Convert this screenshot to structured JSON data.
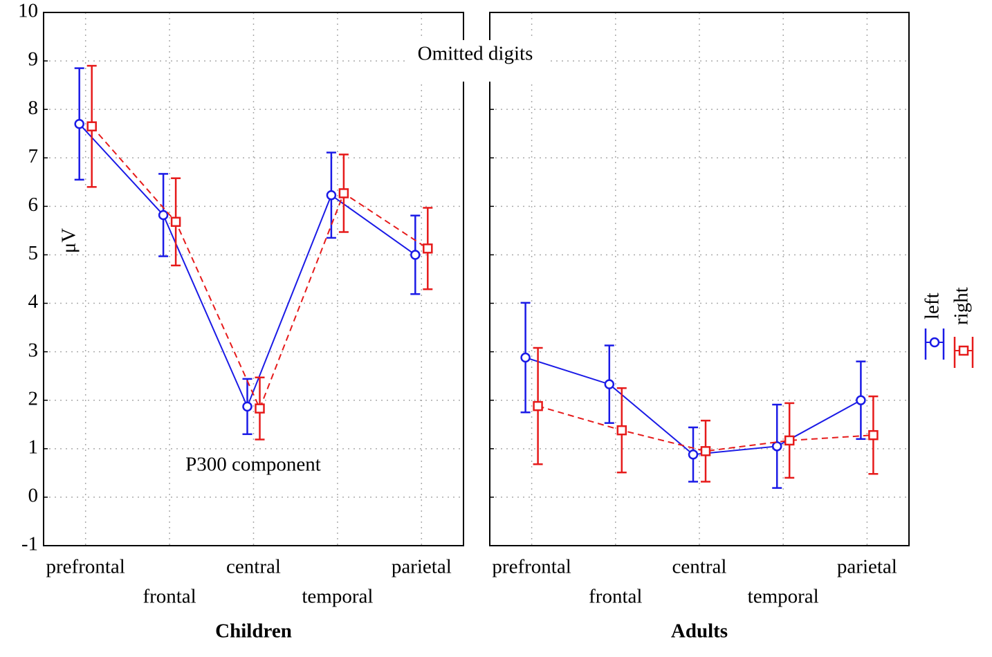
{
  "chart_data": {
    "type": "line",
    "title": "Omitted digits",
    "annotation": "P300 component",
    "y_label": "μV",
    "categories": [
      "prefrontal",
      "frontal",
      "central",
      "temporal",
      "parietal"
    ],
    "ylim": [
      -1,
      10
    ],
    "yticks": [
      -1,
      0,
      1,
      2,
      3,
      4,
      5,
      6,
      7,
      8,
      9,
      10
    ],
    "grid": true,
    "legend": "right",
    "series": [
      {
        "name": "left",
        "color": "#1a1ae6",
        "marker": "circle",
        "dashed": false
      },
      {
        "name": "right",
        "color": "#e61a1a",
        "marker": "square",
        "dashed": true
      }
    ],
    "panels": [
      {
        "x_label": "Children",
        "values": [
          [
            7.7,
            5.82,
            1.87,
            6.23,
            5.0
          ],
          [
            7.65,
            5.68,
            1.83,
            6.27,
            5.13
          ]
        ],
        "errors": [
          [
            1.15,
            0.85,
            0.57,
            0.88,
            0.81
          ],
          [
            1.25,
            0.9,
            0.64,
            0.8,
            0.84
          ]
        ]
      },
      {
        "x_label": "Adults",
        "values": [
          [
            2.88,
            2.33,
            0.88,
            1.05,
            2.0
          ],
          [
            1.88,
            1.38,
            0.95,
            1.17,
            1.28
          ]
        ],
        "errors": [
          [
            1.13,
            0.8,
            0.56,
            0.86,
            0.8
          ],
          [
            1.2,
            0.87,
            0.63,
            0.77,
            0.8
          ]
        ]
      }
    ]
  }
}
